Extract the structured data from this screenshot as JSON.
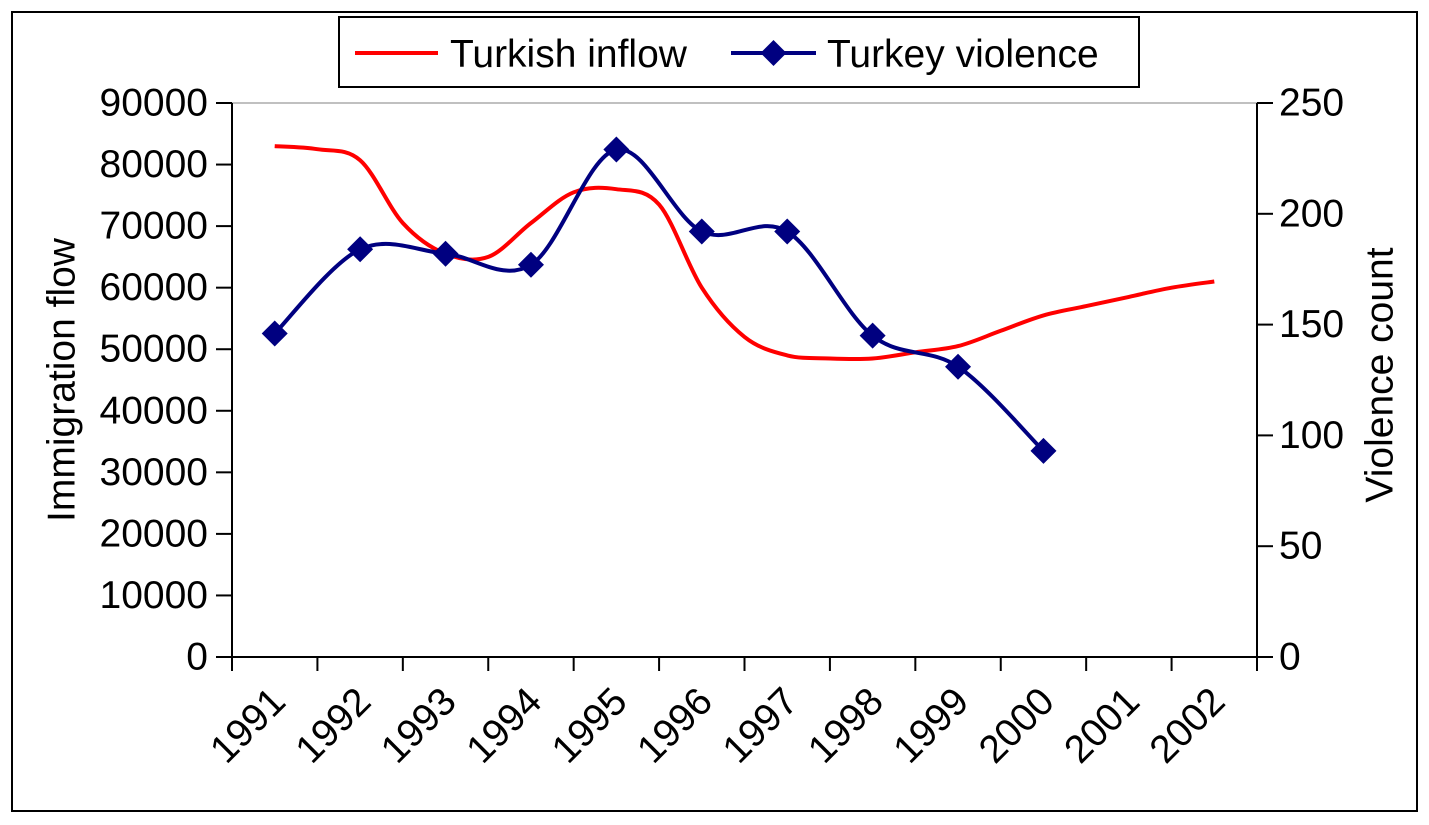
{
  "chart_data": {
    "type": "line",
    "xlabel": "",
    "categories": [
      "1991",
      "1992",
      "1993",
      "1994",
      "1995",
      "1996",
      "1997",
      "1998",
      "1999",
      "2000",
      "2001",
      "2002"
    ],
    "y_left": {
      "label": "Immigration flow",
      "lim": [
        0,
        90000
      ],
      "ticks": [
        0,
        10000,
        20000,
        30000,
        40000,
        50000,
        60000,
        70000,
        80000,
        90000
      ]
    },
    "y_right": {
      "label": "Violence count",
      "lim": [
        0,
        250
      ],
      "ticks": [
        0,
        50,
        100,
        150,
        200,
        250
      ]
    },
    "grid": false,
    "legend": {
      "position": "top-center"
    },
    "series": [
      {
        "name": "Turkish inflow",
        "axis": "left",
        "color": "#ff0000",
        "marker": "none",
        "smooth": true,
        "x": [
          1991,
          1991.5,
          1992,
          1992.5,
          1993,
          1993.5,
          1994,
          1994.5,
          1995,
          1995.5,
          1996,
          1996.5,
          1997,
          1997.5,
          1998,
          1998.5,
          1999,
          1999.5,
          2000,
          2000.5,
          2001,
          2001.5,
          2002
        ],
        "values": [
          83000,
          82500,
          80700,
          70500,
          65500,
          65000,
          70500,
          75500,
          76000,
          73500,
          60000,
          52000,
          49000,
          48500,
          48500,
          49500,
          50500,
          53000,
          55500,
          57000,
          58500,
          60000,
          61000
        ]
      },
      {
        "name": "Turkey violence",
        "axis": "right",
        "color": "#000080",
        "marker": "diamond",
        "smooth": true,
        "x": [
          1991,
          1992,
          1993,
          1994,
          1995,
          1996,
          1997,
          1998,
          1999,
          2000
        ],
        "values": [
          146,
          184,
          182,
          177,
          229,
          192,
          192,
          145,
          131,
          93
        ]
      }
    ]
  }
}
